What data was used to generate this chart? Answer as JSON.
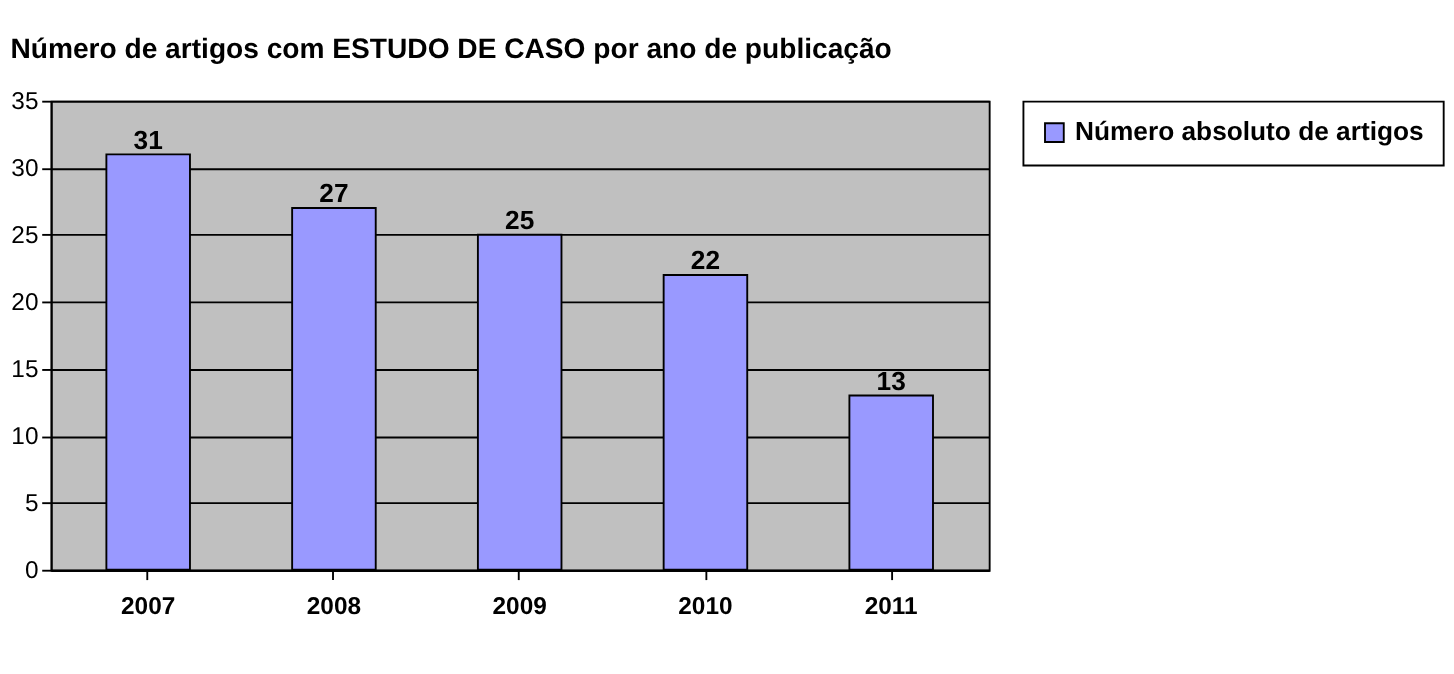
{
  "chart_data": {
    "type": "bar",
    "title": "Número de artigos com ESTUDO DE CASO por ano de publicação",
    "categories": [
      "2007",
      "2008",
      "2009",
      "2010",
      "2011"
    ],
    "series": [
      {
        "name": "Número absoluto de artigos",
        "color": "#9999ff",
        "values": [
          31,
          27,
          25,
          22,
          13
        ]
      }
    ],
    "ylim": [
      0,
      35
    ],
    "yticks": [
      0,
      5,
      10,
      15,
      20,
      25,
      30,
      35
    ],
    "grid": "y",
    "legend": "right",
    "data_labels": true
  }
}
